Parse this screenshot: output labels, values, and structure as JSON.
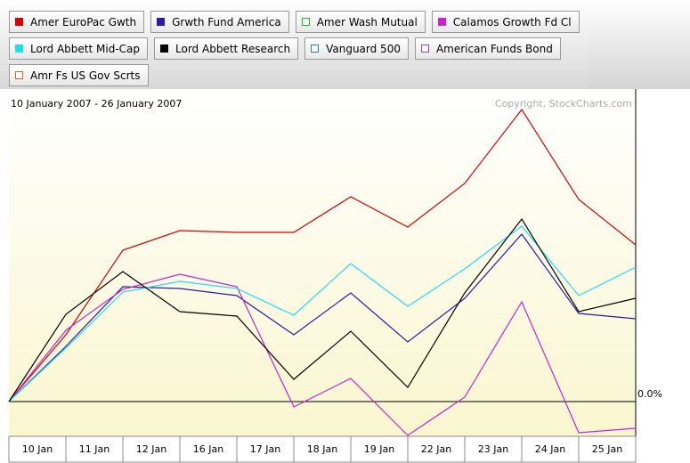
{
  "chart_data": {
    "type": "line",
    "subtitle": "10 January 2007 - 26 January 2007",
    "annotation": "Copyright, StockCharts.com",
    "categories": [
      "10 Jan",
      "11 Jan",
      "12 Jan",
      "16 Jan",
      "17 Jan",
      "18 Jan",
      "19 Jan",
      "22 Jan",
      "23 Jan",
      "24 Jan",
      "25 Jan",
      null
    ],
    "ylim": [
      -0.39,
      3.51
    ],
    "yticks": [
      {
        "value": 0,
        "label": "0.0%"
      }
    ],
    "series": [
      {
        "name": "Amer EuroPac Gwth",
        "color": "#dd0000",
        "visible": true,
        "values": [
          0,
          0.75,
          1.7,
          1.92,
          1.9,
          1.9,
          2.3,
          1.96,
          2.45,
          3.28,
          2.27,
          1.76
        ]
      },
      {
        "name": "Grwth Fund America",
        "color": "#2a1aa8",
        "visible": true,
        "values": [
          0,
          0.62,
          1.29,
          1.27,
          1.19,
          0.75,
          1.22,
          0.67,
          1.16,
          1.88,
          0.99,
          0.93
        ]
      },
      {
        "name": "Amer Wash Mutual",
        "color": "#22bb22",
        "visible": false
      },
      {
        "name": "Calamos Growth Fd Cl",
        "color": "#cc22cc",
        "visible": true,
        "values": [
          0,
          0.8,
          1.26,
          1.43,
          1.29,
          -0.06,
          0.26,
          -0.38,
          0.05,
          1.12,
          -0.35,
          -0.3
        ]
      },
      {
        "name": "Lord Abbett Mid-Cap",
        "color": "#22ddee",
        "visible": true,
        "values": [
          0,
          0.6,
          1.23,
          1.35,
          1.27,
          0.97,
          1.55,
          1.07,
          1.49,
          1.97,
          1.19,
          1.51
        ]
      },
      {
        "name": "Lord Abbett Research",
        "color": "#000000",
        "visible": true,
        "values": [
          0,
          0.98,
          1.46,
          1.01,
          0.96,
          0.25,
          0.79,
          0.16,
          1.22,
          2.05,
          1.01,
          1.16
        ]
      },
      {
        "name": "Vanguard 500",
        "color": "#228888",
        "visible": false
      },
      {
        "name": "American Funds Bond",
        "color": "#9944cc",
        "visible": false
      },
      {
        "name": "Amr Fs US Gov Scrts",
        "color": "#cc6633",
        "visible": false
      }
    ]
  }
}
